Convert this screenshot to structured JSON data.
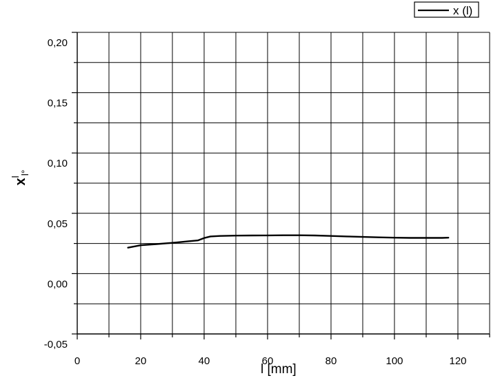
{
  "chart_data": {
    "type": "line",
    "title": "",
    "xlabel": "l [mm]",
    "ylabel": "x",
    "ylabel_superscript": "l",
    "ylabel_subscript": "l°",
    "xlim": [
      0,
      130
    ],
    "ylim": [
      -0.05,
      0.2
    ],
    "x_ticks": [
      0,
      20,
      40,
      60,
      80,
      100,
      120
    ],
    "x_tick_labels": [
      "0",
      "20",
      "40",
      "60",
      "80",
      "100",
      "120"
    ],
    "y_ticks": [
      -0.05,
      0.0,
      0.05,
      0.1,
      0.15,
      0.2
    ],
    "y_tick_labels": [
      "-0,05",
      "0,00",
      "0,05",
      "0,10",
      "0,15",
      "0,20"
    ],
    "grid": true,
    "legend_position": "top-right",
    "series": [
      {
        "name": "x (l)",
        "color": "#000000",
        "x": [
          16,
          20,
          25,
          30,
          35,
          38,
          40,
          42,
          45,
          50,
          55,
          60,
          65,
          70,
          75,
          80,
          85,
          90,
          95,
          100,
          105,
          110,
          115,
          117
        ],
        "y": [
          0.0215,
          0.0235,
          0.0245,
          0.0255,
          0.0268,
          0.0275,
          0.0295,
          0.0308,
          0.0312,
          0.0315,
          0.0316,
          0.0317,
          0.0318,
          0.0318,
          0.0316,
          0.0312,
          0.0308,
          0.0304,
          0.0301,
          0.0298,
          0.0296,
          0.0296,
          0.0296,
          0.0298
        ]
      }
    ]
  }
}
